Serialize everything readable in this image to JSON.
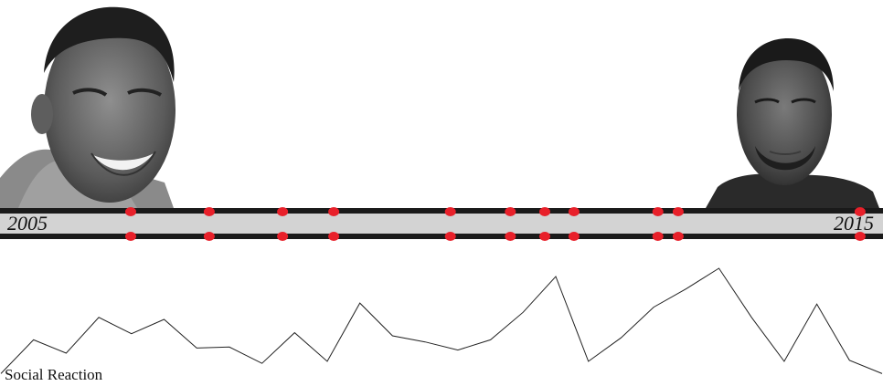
{
  "timeline": {
    "start_label": "2005",
    "end_label": "2015",
    "track_color": "#d3d3d3",
    "rail_color": "#1a1a1a",
    "event_color": "#e8202a",
    "events_top": [
      0.148,
      0.237,
      0.32,
      0.378,
      0.51,
      0.578,
      0.617,
      0.65,
      0.745,
      0.768,
      0.974
    ],
    "events_bottom": [
      0.148,
      0.237,
      0.32,
      0.378,
      0.51,
      0.578,
      0.617,
      0.65,
      0.745,
      0.768,
      0.974
    ]
  },
  "social": {
    "label": "Social Reaction",
    "line_color": "#222222",
    "values": [
      0.05,
      0.38,
      0.25,
      0.6,
      0.44,
      0.58,
      0.3,
      0.31,
      0.15,
      0.45,
      0.17,
      0.74,
      0.42,
      0.36,
      0.28,
      0.38,
      0.65,
      1.0,
      0.17,
      0.4,
      0.7,
      0.88,
      1.08,
      0.6,
      0.17,
      0.73,
      0.18,
      0.05
    ]
  },
  "portraits": {
    "left": "young-kanye-smiling-portrait",
    "right": "older-kanye-serious-portrait"
  }
}
